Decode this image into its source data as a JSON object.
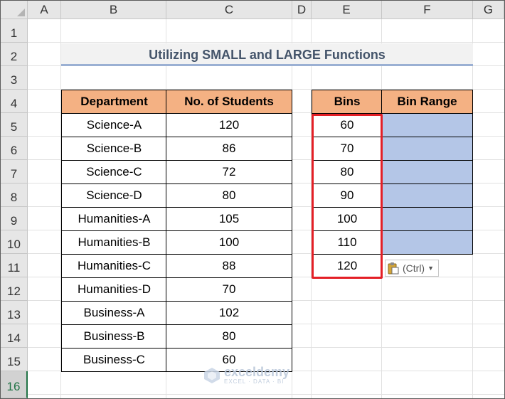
{
  "columns": [
    "A",
    "B",
    "C",
    "D",
    "E",
    "F",
    "G"
  ],
  "rows": [
    "1",
    "2",
    "3",
    "4",
    "5",
    "6",
    "7",
    "8",
    "9",
    "10",
    "11",
    "12",
    "13",
    "14",
    "15",
    "16"
  ],
  "title": "Utilizing SMALL and LARGE Functions",
  "dept_table": {
    "headers": [
      "Department",
      "No. of Students"
    ],
    "rows": [
      [
        "Science-A",
        "120"
      ],
      [
        "Science-B",
        "86"
      ],
      [
        "Science-C",
        "72"
      ],
      [
        "Science-D",
        "80"
      ],
      [
        "Humanities-A",
        "105"
      ],
      [
        "Humanities-B",
        "100"
      ],
      [
        "Humanities-C",
        "88"
      ],
      [
        "Humanities-D",
        "70"
      ],
      [
        "Business-A",
        "102"
      ],
      [
        "Business-B",
        "80"
      ],
      [
        "Business-C",
        "60"
      ]
    ]
  },
  "bins_table": {
    "headers": [
      "Bins",
      "Bin Range"
    ],
    "bins": [
      "60",
      "70",
      "80",
      "90",
      "100",
      "110",
      "120"
    ],
    "bin_range": [
      "",
      "",
      "",
      "",
      "",
      ""
    ]
  },
  "paste_options": {
    "label": "(Ctrl)",
    "icon": "clipboard-icon"
  },
  "watermark": {
    "name": "exceldemy",
    "tagline": "EXCEL · DATA · BI"
  },
  "selected_row": "16",
  "colors": {
    "header_fill": "#f4b183",
    "bin_range_fill": "#b4c6e7",
    "highlight_border": "#e41f26",
    "title_text": "#44546a"
  }
}
